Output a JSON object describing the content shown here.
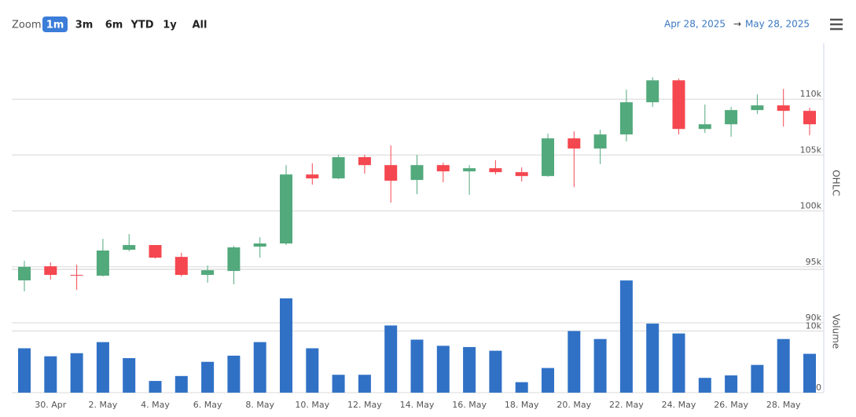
{
  "toolbar": {
    "zoom_label": "Zoom",
    "buttons": [
      "1m",
      "3m",
      "6m",
      "YTD",
      "1y",
      "All"
    ],
    "selected": 0,
    "range_from": "Apr 28, 2025",
    "range_arrow": "→",
    "range_to": "May 28, 2025"
  },
  "chart_data": [
    {
      "type": "candlestick",
      "axis_title": "OHLC",
      "categories": [
        null,
        "30. Apr",
        null,
        "2. May",
        null,
        "4. May",
        null,
        "6. May",
        null,
        "8. May",
        null,
        "10. May",
        null,
        "12. May",
        null,
        "14. May",
        null,
        "16. May",
        null,
        "18. May",
        null,
        "20. May",
        null,
        "22. May",
        null,
        "24. May",
        null,
        "26. May",
        null,
        "28. May",
        null
      ],
      "open": [
        93790,
        95050,
        94280,
        94210,
        96530,
        96950,
        95890,
        94280,
        94630,
        96810,
        97090,
        103260,
        102910,
        104810,
        104100,
        102770,
        104100,
        103540,
        103820,
        103470,
        103120,
        106490,
        105580,
        106840,
        109720,
        111680,
        107330,
        107750,
        109020,
        109440,
        108950
      ],
      "high": [
        95540,
        95400,
        95190,
        97510,
        97930,
        96950,
        96250,
        95120,
        96880,
        97650,
        104100,
        104250,
        105020,
        105020,
        105860,
        105020,
        104320,
        104100,
        104530,
        103890,
        106910,
        107120,
        107260,
        110840,
        111960,
        111820,
        109510,
        109300,
        110420,
        110910,
        109230
      ],
      "low": [
        92810,
        93860,
        92950,
        94140,
        96390,
        95750,
        94140,
        93580,
        93440,
        95820,
        96950,
        102350,
        102840,
        103330,
        100740,
        101510,
        102560,
        101440,
        103260,
        102630,
        103050,
        102140,
        104180,
        106210,
        109300,
        106840,
        106980,
        106630,
        108670,
        107540,
        106770
      ],
      "close": [
        95000,
        94280,
        94210,
        96460,
        96950,
        95820,
        94280,
        94700,
        96740,
        97090,
        103260,
        102910,
        104810,
        104100,
        102700,
        104100,
        103540,
        103820,
        103470,
        103120,
        106490,
        105580,
        106840,
        109720,
        111680,
        107330,
        107750,
        109020,
        109440,
        108950,
        107750
      ],
      "up_color": "#52a97c",
      "down_color": "#f4474f",
      "ylim": [
        83750,
        115000
      ],
      "yticks": [
        {
          "value": 90000,
          "label": "90k"
        },
        {
          "value": 95000,
          "label": "95k"
        },
        {
          "value": 100000,
          "label": "100k"
        },
        {
          "value": 105000,
          "label": "105k"
        },
        {
          "value": 110000,
          "label": "110k"
        }
      ],
      "grid": true
    },
    {
      "type": "bar",
      "axis_title": "Volume",
      "values": [
        7200,
        5900,
        6400,
        8200,
        5600,
        1900,
        2700,
        5000,
        6000,
        8200,
        15300,
        7200,
        2900,
        2900,
        10900,
        8600,
        7600,
        7400,
        6800,
        1700,
        4000,
        10000,
        8700,
        18200,
        11200,
        9600,
        2400,
        2800,
        4500,
        8700,
        6300
      ],
      "color": "#3071c6",
      "ylim": [
        0,
        20000
      ],
      "yticks": [
        0,
        {
          "value": 10000,
          "label": "10k"
        }
      ],
      "grid": true
    }
  ]
}
